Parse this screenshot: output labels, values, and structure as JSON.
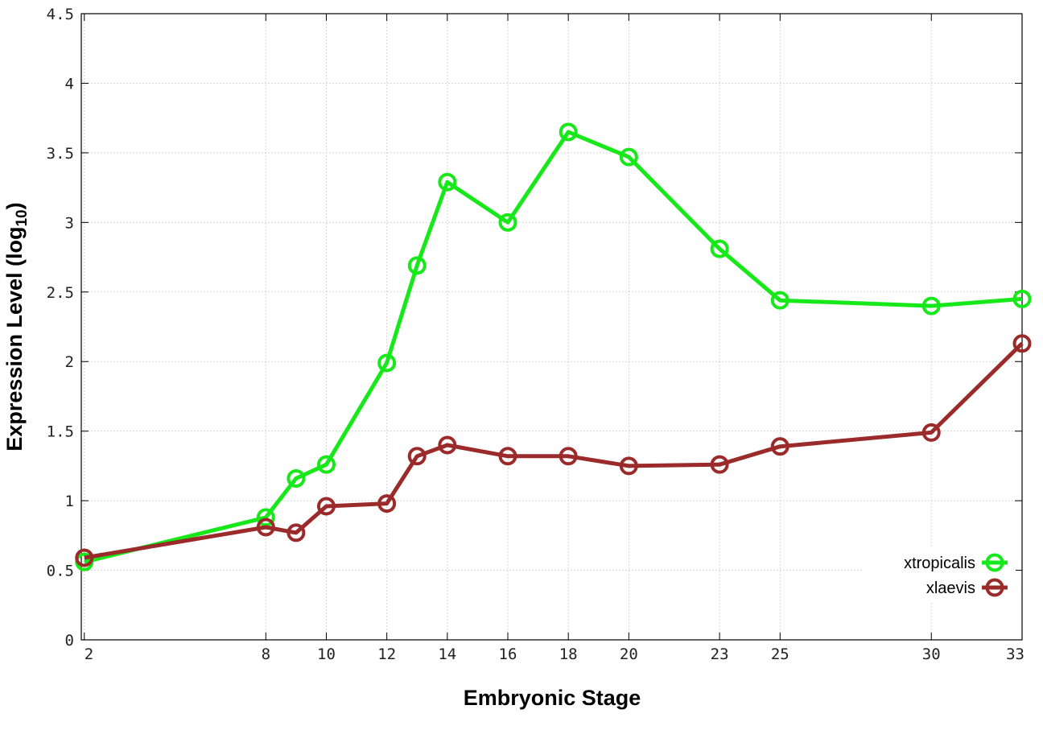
{
  "chart_data": {
    "type": "line",
    "title": "",
    "xlabel": "Embryonic Stage",
    "ylabel": {
      "main": "Expression Level (log",
      "sub": "10",
      "close": ")"
    },
    "x_ticks": [
      2,
      8,
      10,
      12,
      14,
      16,
      18,
      20,
      23,
      25,
      30,
      33
    ],
    "y_ticks": [
      "0",
      "0.5",
      "1",
      "1.5",
      "2",
      "2.5",
      "3",
      "3.5",
      "4",
      "4.5"
    ],
    "ylim": [
      0,
      4.5
    ],
    "xlim": [
      1.9,
      33
    ],
    "grid": true,
    "legend_position": "bottom-right",
    "x": [
      2,
      8,
      9,
      10,
      12,
      13,
      14,
      16,
      18,
      20,
      23,
      25,
      30,
      33
    ],
    "series": [
      {
        "name": "xtropicalis",
        "color": "#17e81a",
        "values": [
          0.56,
          0.88,
          1.16,
          1.26,
          1.99,
          2.69,
          3.29,
          3.0,
          3.65,
          3.47,
          2.81,
          2.44,
          2.4,
          2.45
        ]
      },
      {
        "name": "xlaevis",
        "color": "#9b2b2a",
        "values": [
          0.59,
          0.81,
          0.77,
          0.96,
          0.98,
          1.32,
          1.4,
          1.32,
          1.32,
          1.25,
          1.26,
          1.39,
          1.49,
          2.13
        ]
      }
    ]
  }
}
